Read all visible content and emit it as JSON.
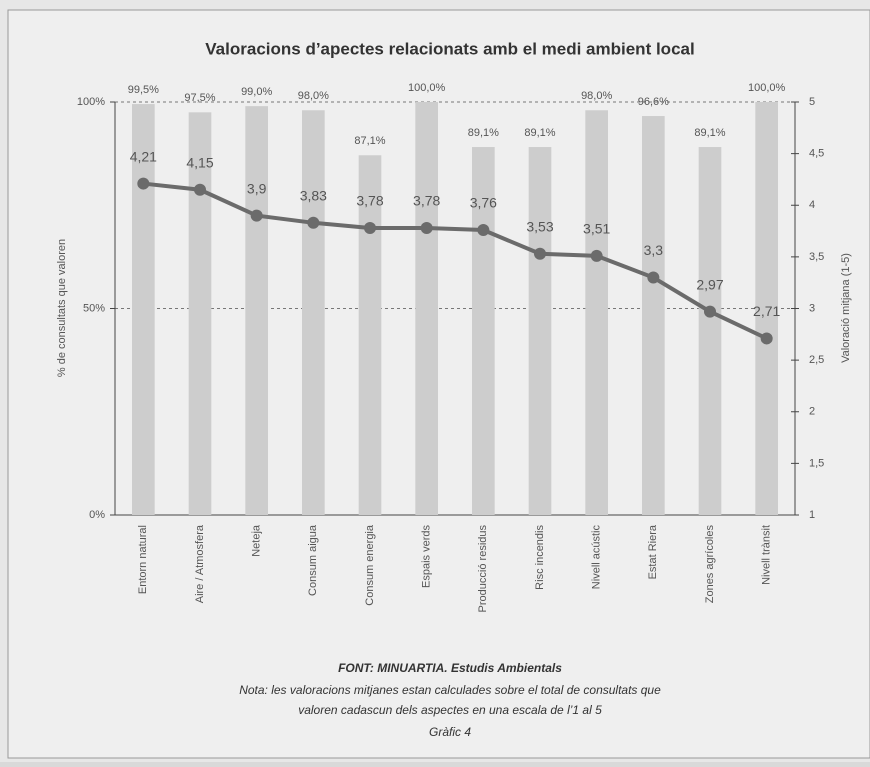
{
  "chart_data": {
    "type": "bar_line",
    "title": "Valoracions d’apectes relacionats amb el medi ambient local",
    "categories": [
      "Entorn natural",
      "Aire / Atmosfera",
      "Neteja",
      "Consum aigua",
      "Consum energia",
      "Espais verds",
      "Producció residus",
      "Risc incendis",
      "Nivell acústic",
      "Estat Riera",
      "Zones agrícoles",
      "Nivell trànsit"
    ],
    "series": [
      {
        "name": "% de consultats que valoren",
        "type": "bar",
        "axis": "y",
        "color": "#cdcdcd",
        "values": [
          99.5,
          97.5,
          99.0,
          98.0,
          87.1,
          100.0,
          89.1,
          89.1,
          98.0,
          96.6,
          89.1,
          100.0
        ],
        "value_labels": [
          "99,5%",
          "97,5%",
          "99,0%",
          "98,0%",
          "87,1%",
          "100,0%",
          "89,1%",
          "89,1%",
          "98,0%",
          "96,6%",
          "89,1%",
          "100,0%"
        ]
      },
      {
        "name": "Valoració mitjana (1-5)",
        "type": "line",
        "axis": "y2",
        "color": "#6b6b6b",
        "values": [
          4.21,
          4.15,
          3.9,
          3.83,
          3.78,
          3.78,
          3.76,
          3.53,
          3.51,
          3.3,
          2.97,
          2.71
        ],
        "value_labels": [
          "4,21",
          "4,15",
          "3,9",
          "3,83",
          "3,78",
          "3,78",
          "3,76",
          "3,53",
          "3,51",
          "3,3",
          "2,97",
          "2,71"
        ]
      }
    ],
    "ylabel": "% de consultats que valoren",
    "y2label": "Valoració mitjana (1-5)",
    "ylim": [
      0,
      100
    ],
    "yticks": [
      {
        "value": 0,
        "label": "0%"
      },
      {
        "value": 50,
        "label": "50%"
      },
      {
        "value": 100,
        "label": "100%"
      }
    ],
    "y2lim": [
      1,
      5
    ],
    "y2ticks": [
      1,
      {
        "value": 1.5,
        "label": "1,5"
      },
      2,
      {
        "value": 2.5,
        "label": "2,5"
      },
      3,
      {
        "value": 3.5,
        "label": "3,5"
      },
      4,
      {
        "value": 4.5,
        "label": "4,5"
      },
      5
    ],
    "grid": true
  },
  "footer": {
    "source": "FONT: MINUARTIA. Estudis Ambientals",
    "note": [
      "Nota: les valoracions mitjanes estan calculades sobre el total de consultats que",
      "valoren cadascun dels aspectes  en una escala de l’1 al  5"
    ],
    "caption": "Gràfic 4"
  }
}
